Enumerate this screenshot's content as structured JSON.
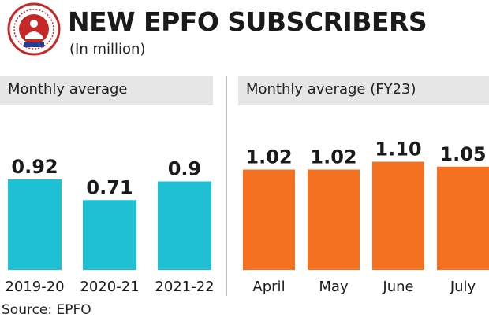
{
  "header": {
    "title": "NEW EPFO SUBSCRIBERS",
    "subtitle": "(In million)"
  },
  "source": "Source: EPFO",
  "colors": {
    "left_bars": "#1fc0d3",
    "right_bars": "#f37121",
    "header_bg": "#e6e6e6",
    "logo_red": "#c62828",
    "logo_blue": "#1e3f99"
  },
  "chart_data": [
    {
      "type": "bar",
      "panel_title": "Monthly average",
      "categories": [
        "2019-20",
        "2020-21",
        "2021-22"
      ],
      "values": [
        0.92,
        0.71,
        0.9
      ],
      "value_labels": [
        "0.92",
        "0.71",
        "0.9"
      ],
      "unit": "million",
      "ylim": [
        0,
        1.2
      ]
    },
    {
      "type": "bar",
      "panel_title": "Monthly average (FY23)",
      "categories": [
        "April",
        "May",
        "June",
        "July"
      ],
      "values": [
        1.02,
        1.02,
        1.1,
        1.05
      ],
      "value_labels": [
        "1.02",
        "1.02",
        "1.10",
        "1.05"
      ],
      "unit": "million",
      "ylim": [
        0,
        1.2
      ]
    }
  ]
}
